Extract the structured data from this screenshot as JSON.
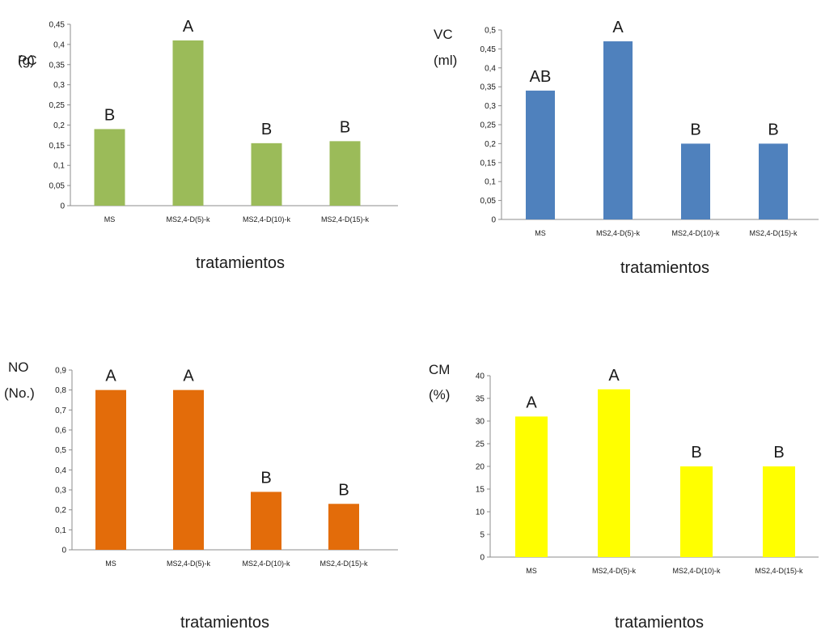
{
  "chart_data": [
    {
      "type": "bar",
      "ylabel": [
        "PC",
        "(g)"
      ],
      "xlabel": "tratamientos",
      "categories": [
        "MS",
        "MS2,4-D(5)-k",
        "MS2,4-D(10)-k",
        "MS2,4-D(15)-k"
      ],
      "values": [
        0.19,
        0.41,
        0.155,
        0.16
      ],
      "significance": [
        "B",
        "A",
        "B",
        "B"
      ],
      "ylim": [
        0,
        0.45
      ],
      "ytick_values": [
        0,
        0.05,
        0.1,
        0.15,
        0.2,
        0.25,
        0.3,
        0.35,
        0.4,
        0.45
      ],
      "yticks": [
        "0",
        "0,05",
        "0,1",
        "0,15",
        "0,2",
        "0,25",
        "0,3",
        "0,35",
        "0,4",
        "0,45"
      ],
      "color": "#9bbb59",
      "grid": false
    },
    {
      "type": "bar",
      "ylabel": [
        "VC",
        "(ml)"
      ],
      "xlabel": "tratamientos",
      "categories": [
        "MS",
        "MS2,4-D(5)-k",
        "MS2,4-D(10)-k",
        "MS2,4-D(15)-k"
      ],
      "values": [
        0.34,
        0.47,
        0.2,
        0.2
      ],
      "significance": [
        "AB",
        "A",
        "B",
        "B"
      ],
      "ylim": [
        0,
        0.5
      ],
      "ytick_values": [
        0,
        0.05,
        0.1,
        0.15,
        0.2,
        0.25,
        0.3,
        0.35,
        0.4,
        0.45,
        0.5
      ],
      "yticks": [
        "0",
        "0,05",
        "0,1",
        "0,15",
        "0,2",
        "0,25",
        "0,3",
        "0,35",
        "0,4",
        "0,45",
        "0,5"
      ],
      "color": "#4f81bd",
      "grid": false
    },
    {
      "type": "bar",
      "ylabel": [
        "NO",
        "(No.)"
      ],
      "xlabel": "tratamientos",
      "categories": [
        "MS",
        "MS2,4-D(5)-k",
        "MS2,4-D(10)-k",
        "MS2,4-D(15)-k"
      ],
      "values": [
        0.8,
        0.8,
        0.29,
        0.23
      ],
      "significance": [
        "A",
        "A",
        "B",
        "B"
      ],
      "ylim": [
        0,
        0.9
      ],
      "ytick_values": [
        0,
        0.1,
        0.2,
        0.3,
        0.4,
        0.5,
        0.6,
        0.7,
        0.8,
        0.9
      ],
      "yticks": [
        "0",
        "0,1",
        "0,2",
        "0,3",
        "0,4",
        "0,5",
        "0,6",
        "0,7",
        "0,8",
        "0,9"
      ],
      "color": "#e36c0a",
      "grid": false
    },
    {
      "type": "bar",
      "ylabel": [
        "CM",
        "(%)"
      ],
      "xlabel": "tratamientos",
      "categories": [
        "MS",
        "MS2,4-D(5)-k",
        "MS2,4-D(10)-k",
        "MS2,4-D(15)-k"
      ],
      "values": [
        31,
        37,
        20,
        20
      ],
      "significance": [
        "A",
        "A",
        "B",
        "B"
      ],
      "ylim": [
        0,
        40
      ],
      "ytick_values": [
        0,
        5,
        10,
        15,
        20,
        25,
        30,
        35,
        40
      ],
      "yticks": [
        "0",
        "5",
        "10",
        "15",
        "20",
        "25",
        "30",
        "35",
        "40"
      ],
      "color": "#ffff00",
      "grid": false
    }
  ]
}
